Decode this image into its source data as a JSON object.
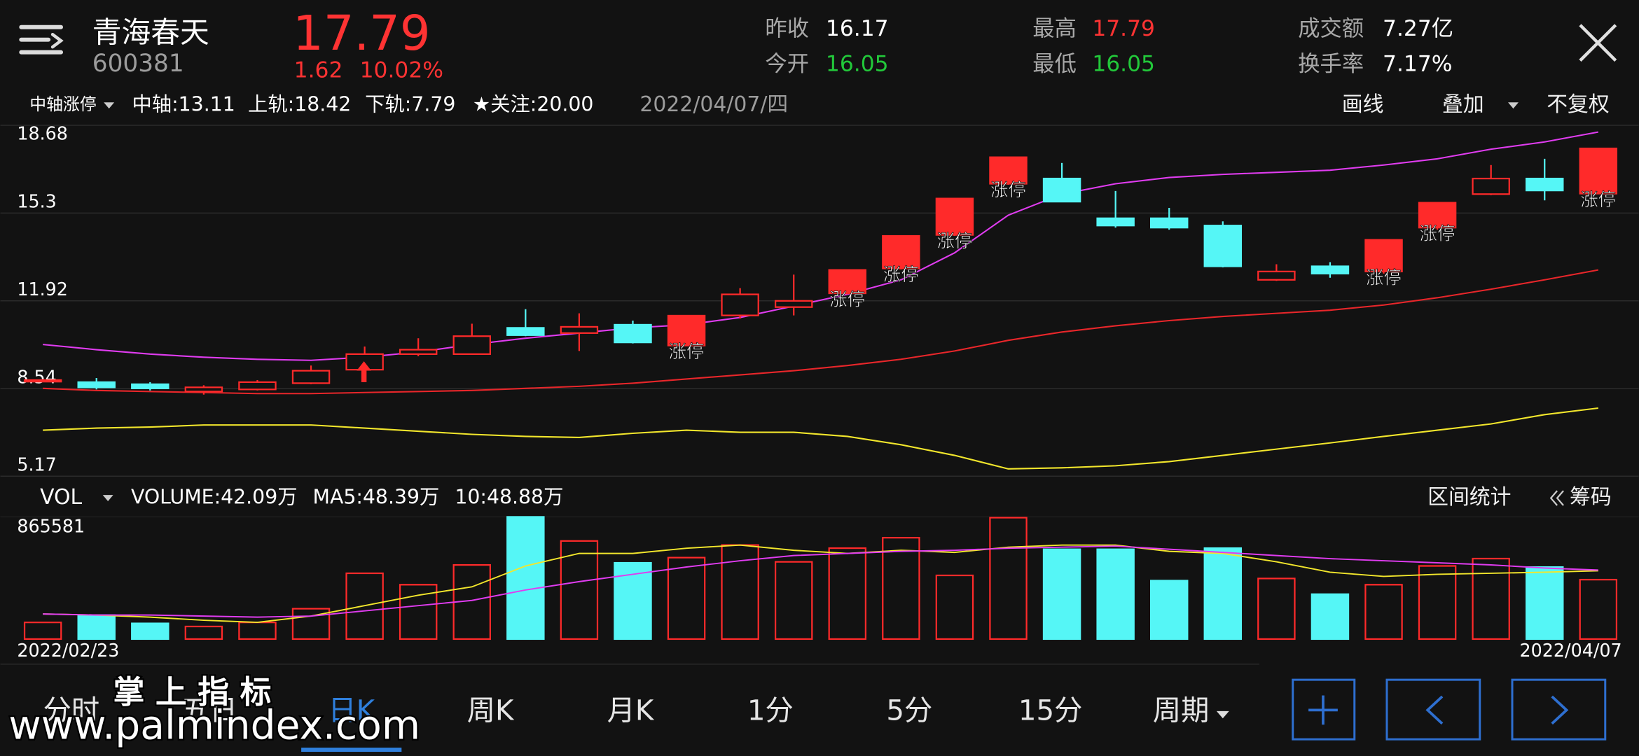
{
  "header": {
    "name": "青海春天",
    "code": "600381",
    "price": 17.79,
    "change": 1.62,
    "change_pct": "10.02%",
    "stats": [
      {
        "label": "昨收",
        "value": 16.17
      },
      {
        "label": "今开",
        "value": 16.05
      },
      {
        "label": "最高",
        "value": 17.79
      },
      {
        "label": "最低",
        "value": 16.05
      },
      {
        "label": "成交额",
        "value": "7.27亿"
      },
      {
        "label": "换手率",
        "value": "7.17%"
      }
    ]
  },
  "indicator_bar": {
    "name": "中轴涨停",
    "date": "2022/04/07/四",
    "tools": [
      "画线",
      "叠加",
      "不复权"
    ]
  },
  "volume_bar": {
    "tools": [
      "区间统计",
      "筹码"
    ]
  },
  "tabs": [
    "分时",
    "五日",
    "日K",
    "周K",
    "月K",
    "1分",
    "5分",
    "15分",
    "周期"
  ],
  "watermark": {
    "title": "掌 上 指 标",
    "url": "www.palmindex.com"
  },
  "chart_data": [
    {
      "type": "candlestick",
      "up_color": "#ff2a2a",
      "down_color": "#55f6f6",
      "note": "★关注:20.00",
      "note_color": "#ff2a2a",
      "categories": [
        "2022/02/23",
        null,
        null,
        null,
        null,
        null,
        null,
        null,
        null,
        null,
        null,
        null,
        null,
        null,
        null,
        null,
        null,
        null,
        null,
        null,
        null,
        null,
        null,
        null,
        null,
        null,
        null,
        null,
        null,
        "2022/04/07"
      ],
      "open": [
        8.83,
        8.79,
        8.71,
        8.43,
        8.51,
        8.75,
        9.27,
        9.87,
        9.87,
        10.88,
        10.68,
        11.0,
        10.2,
        11.36,
        11.68,
        12.21,
        13.17,
        14.46,
        16.43,
        16.63,
        15.1,
        15.1,
        14.82,
        12.73,
        13.25,
        13.05,
        14.74,
        16.03,
        16.63,
        16.05
      ],
      "high": [
        8.91,
        8.95,
        8.79,
        8.67,
        8.87,
        9.43,
        10.16,
        10.48,
        11.04,
        11.6,
        11.44,
        11.16,
        11.35,
        12.41,
        12.93,
        13.11,
        14.42,
        15.86,
        17.45,
        17.23,
        16.15,
        15.5,
        14.98,
        13.33,
        13.41,
        14.27,
        15.7,
        17.15,
        17.39,
        17.79
      ],
      "low": [
        8.83,
        8.51,
        8.47,
        8.31,
        8.47,
        8.71,
        8.79,
        9.79,
        9.87,
        10.56,
        9.99,
        10.28,
        10.2,
        11.24,
        11.36,
        12.17,
        13.13,
        14.42,
        16.39,
        15.74,
        14.74,
        14.66,
        13.21,
        12.69,
        12.81,
        12.97,
        14.66,
        15.99,
        15.79,
        16.05
      ],
      "close": [
        8.87,
        8.59,
        8.55,
        8.59,
        8.79,
        9.23,
        9.87,
        10.04,
        10.56,
        10.6,
        10.92,
        10.32,
        11.35,
        12.17,
        11.92,
        13.11,
        14.42,
        15.86,
        17.45,
        15.74,
        14.82,
        14.74,
        13.25,
        13.05,
        12.97,
        14.27,
        15.7,
        16.63,
        16.17,
        17.79
      ],
      "labels": [
        null,
        null,
        null,
        null,
        null,
        null,
        null,
        null,
        null,
        null,
        null,
        null,
        "涨停",
        null,
        null,
        "涨停",
        "涨停",
        "涨停",
        "涨停",
        null,
        null,
        null,
        null,
        null,
        null,
        "涨停",
        "涨停",
        null,
        null,
        "涨停"
      ],
      "series": [
        {
          "name": "中轴:13.11",
          "color": "#e8262a",
          "values": [
            8.55,
            8.47,
            8.43,
            8.39,
            8.35,
            8.35,
            8.39,
            8.43,
            8.47,
            8.55,
            8.63,
            8.75,
            8.91,
            9.07,
            9.23,
            9.43,
            9.67,
            9.99,
            10.4,
            10.72,
            10.96,
            11.16,
            11.32,
            11.44,
            11.56,
            11.76,
            12.04,
            12.37,
            12.73,
            13.11
          ]
        },
        {
          "name": "上轨:18.42",
          "color": "#e03cf0",
          "values": [
            10.24,
            10.04,
            9.87,
            9.75,
            9.67,
            9.63,
            9.75,
            9.95,
            10.24,
            10.48,
            10.68,
            10.88,
            11.0,
            11.28,
            11.72,
            12.17,
            12.73,
            13.77,
            15.22,
            16.03,
            16.43,
            16.67,
            16.79,
            16.87,
            16.95,
            17.15,
            17.39,
            17.76,
            18.04,
            18.42
          ]
        },
        {
          "name": "下轨:7.79",
          "color": "#f2e62c",
          "values": [
            6.94,
            7.02,
            7.06,
            7.14,
            7.14,
            7.14,
            7.02,
            6.9,
            6.78,
            6.7,
            6.66,
            6.82,
            6.94,
            6.86,
            6.86,
            6.7,
            6.38,
            5.97,
            5.45,
            5.49,
            5.57,
            5.73,
            5.97,
            6.21,
            6.45,
            6.7,
            6.94,
            7.18,
            7.54,
            7.79
          ]
        }
      ],
      "ylim": [
        5.17,
        18.68
      ],
      "yticks": [
        5.17,
        8.54,
        11.92,
        15.3,
        18.68
      ],
      "grid": true
    },
    {
      "type": "bar",
      "indicator": "VOL",
      "ylim": [
        0,
        865581
      ],
      "yticks": [
        865581
      ],
      "series": [
        {
          "name": "VOLUME:42.09万",
          "style": "bar",
          "color": "#ffffff",
          "values": [
            118000,
            170000,
            111000,
            89000,
            118000,
            215000,
            466000,
            385000,
            525000,
            865581,
            695000,
            540000,
            577000,
            666000,
            547000,
            644000,
            718000,
            451000,
            860000,
            636000,
            636000,
            414000,
            644000,
            429000,
            318000,
            385000,
            518000,
            570000,
            510000,
            420900
          ]
        },
        {
          "name": "MA5:48.39万",
          "style": "line",
          "color": "#f2e62c",
          "values": [
            177600,
            170200,
            155400,
            133200,
            118400,
            162800,
            236700,
            310700,
            369900,
            517900,
            606600,
            606600,
            643600,
            665800,
            628800,
            606600,
            628800,
            614000,
            651000,
            665800,
            665800,
            621400,
            606600,
            547500,
            473500,
            443900,
            458700,
            466100,
            473500,
            483900
          ]
        },
        {
          "name": "10:48.88万",
          "style": "line",
          "color": "#e03cf0",
          "values": [
            177600,
            170200,
            170200,
            162800,
            155400,
            162800,
            199700,
            236700,
            273700,
            347700,
            406900,
            458700,
            510500,
            554900,
            591800,
            606600,
            621400,
            628800,
            643600,
            651000,
            658400,
            636200,
            614000,
            591800,
            569600,
            554900,
            540100,
            525300,
            503100,
            488800
          ]
        }
      ]
    }
  ]
}
